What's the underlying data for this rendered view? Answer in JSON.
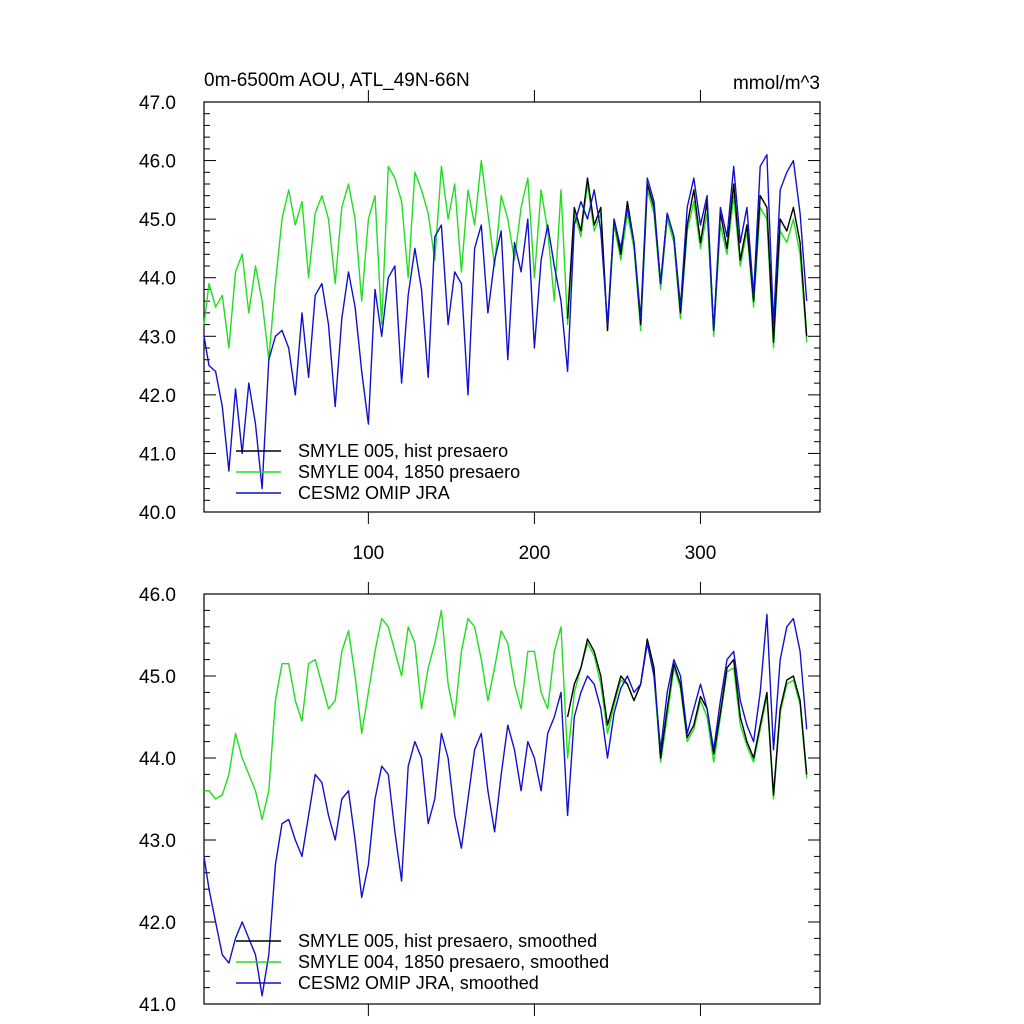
{
  "colors": {
    "smyle005": "#000000",
    "smyle004": "#22dd22",
    "omip": "#1111cc"
  },
  "chart_data": [
    {
      "type": "line",
      "title": "0m-6500m AOU, ATL_49N-66N",
      "units": "mmol/m^3",
      "xlabel": "",
      "ylabel": "",
      "xlim": [
        1,
        372
      ],
      "ylim": [
        40.0,
        47.0
      ],
      "yticks": [
        "40.0",
        "41.0",
        "42.0",
        "43.0",
        "44.0",
        "45.0",
        "46.0",
        "47.0"
      ],
      "xticks": [
        "100",
        "200",
        "300"
      ],
      "legend_position": "bottom-left",
      "series": [
        {
          "name": "SMYLE 005, hist presaero",
          "start_x": 220,
          "x": [
            220,
            224,
            228,
            232,
            236,
            240,
            244,
            248,
            252,
            256,
            260,
            264,
            268,
            272,
            276,
            280,
            284,
            288,
            292,
            296,
            300,
            304,
            308,
            312,
            316,
            320,
            324,
            328,
            332,
            336,
            340,
            344,
            348,
            352,
            356,
            360,
            364
          ],
          "values": [
            43.3,
            45.2,
            44.8,
            45.7,
            44.9,
            45.2,
            43.1,
            45.0,
            44.4,
            45.3,
            44.6,
            43.2,
            45.6,
            45.2,
            43.9,
            45.1,
            44.7,
            43.4,
            44.9,
            45.5,
            44.6,
            45.3,
            43.1,
            45.1,
            44.5,
            45.6,
            44.3,
            44.9,
            43.6,
            45.4,
            45.2,
            42.9,
            45.0,
            44.8,
            45.2,
            44.6,
            43.0
          ]
        },
        {
          "name": "SMYLE 004, 1850 presaero",
          "start_x": 1,
          "x": [
            1,
            4,
            8,
            12,
            16,
            20,
            24,
            28,
            32,
            36,
            40,
            44,
            48,
            52,
            56,
            60,
            64,
            68,
            72,
            76,
            80,
            84,
            88,
            92,
            96,
            100,
            104,
            108,
            112,
            116,
            120,
            124,
            128,
            132,
            136,
            140,
            144,
            148,
            152,
            156,
            160,
            164,
            168,
            172,
            176,
            180,
            184,
            188,
            192,
            196,
            200,
            204,
            208,
            212,
            216,
            220,
            224,
            228,
            232,
            236,
            240,
            244,
            248,
            252,
            256,
            260,
            264,
            268,
            272,
            276,
            280,
            284,
            288,
            292,
            296,
            300,
            304,
            308,
            312,
            316,
            320,
            324,
            328,
            332,
            336,
            340,
            344,
            348,
            352,
            356,
            360,
            364
          ],
          "values": [
            43.2,
            43.9,
            43.5,
            43.7,
            42.8,
            44.1,
            44.4,
            43.4,
            44.2,
            43.6,
            42.6,
            43.9,
            45.0,
            45.5,
            44.9,
            45.3,
            44.0,
            45.1,
            45.4,
            45.0,
            43.9,
            45.2,
            45.6,
            45.0,
            43.6,
            45.0,
            45.4,
            43.2,
            45.9,
            45.7,
            45.3,
            44.0,
            45.8,
            45.5,
            45.1,
            44.3,
            45.9,
            45.0,
            45.6,
            44.1,
            45.5,
            44.9,
            46.0,
            45.1,
            44.2,
            45.4,
            45.0,
            44.3,
            45.2,
            45.7,
            44.0,
            45.5,
            44.8,
            43.6,
            45.5,
            43.2,
            45.1,
            44.7,
            45.6,
            44.8,
            45.1,
            43.1,
            44.9,
            44.3,
            45.1,
            44.5,
            43.1,
            45.5,
            45.1,
            43.8,
            45.0,
            44.6,
            43.3,
            44.8,
            45.3,
            44.5,
            45.1,
            43.0,
            44.9,
            44.4,
            45.4,
            44.2,
            44.8,
            43.5,
            45.2,
            45.0,
            42.8,
            44.8,
            44.6,
            45.0,
            44.4,
            42.9
          ]
        },
        {
          "name": "CESM2 OMIP JRA",
          "start_x": 1,
          "x": [
            1,
            4,
            8,
            12,
            16,
            20,
            24,
            28,
            32,
            36,
            40,
            44,
            48,
            52,
            56,
            60,
            64,
            68,
            72,
            76,
            80,
            84,
            88,
            92,
            96,
            100,
            104,
            108,
            112,
            116,
            120,
            124,
            128,
            132,
            136,
            140,
            144,
            148,
            152,
            156,
            160,
            164,
            168,
            172,
            176,
            180,
            184,
            188,
            192,
            196,
            200,
            204,
            208,
            212,
            216,
            220,
            224,
            228,
            232,
            236,
            240,
            244,
            248,
            252,
            256,
            260,
            264,
            268,
            272,
            276,
            280,
            284,
            288,
            292,
            296,
            300,
            304,
            308,
            312,
            316,
            320,
            324,
            328,
            332,
            336,
            340,
            344,
            348,
            352,
            356,
            360,
            364
          ],
          "values": [
            43.0,
            42.5,
            42.4,
            41.8,
            40.7,
            42.1,
            41.0,
            42.2,
            41.5,
            40.4,
            42.6,
            43.0,
            43.1,
            42.8,
            42.0,
            43.4,
            42.3,
            43.7,
            43.9,
            43.2,
            41.8,
            43.3,
            44.1,
            43.5,
            42.4,
            41.5,
            43.8,
            43.0,
            44.0,
            44.2,
            42.2,
            43.7,
            44.5,
            43.8,
            42.3,
            44.7,
            44.9,
            43.2,
            44.1,
            43.9,
            42.0,
            44.5,
            44.9,
            43.4,
            44.3,
            44.8,
            42.6,
            44.6,
            44.1,
            45.0,
            42.8,
            44.3,
            44.9,
            44.2,
            43.6,
            42.4,
            44.9,
            45.3,
            45.0,
            45.5,
            44.8,
            43.2,
            45.0,
            44.5,
            45.2,
            44.6,
            43.3,
            45.7,
            45.3,
            43.9,
            45.1,
            44.7,
            43.5,
            45.2,
            45.7,
            44.9,
            45.4,
            43.1,
            45.2,
            44.7,
            45.9,
            44.6,
            45.2,
            43.7,
            45.9,
            46.1,
            43.2,
            45.5,
            45.8,
            46.0,
            45.1,
            43.6
          ]
        }
      ]
    },
    {
      "type": "line",
      "title": "",
      "xlabel": "",
      "ylabel": "",
      "xlim": [
        1,
        372
      ],
      "ylim": [
        41.0,
        46.0
      ],
      "yticks": [
        "41.0",
        "42.0",
        "43.0",
        "44.0",
        "45.0",
        "46.0"
      ],
      "xticks": [],
      "legend_position": "bottom-left",
      "series": [
        {
          "name": "SMYLE 005, hist presaero, smoothed",
          "start_x": 220,
          "x": [
            220,
            224,
            228,
            232,
            236,
            240,
            244,
            248,
            252,
            256,
            260,
            264,
            268,
            272,
            276,
            280,
            284,
            288,
            292,
            296,
            300,
            304,
            308,
            312,
            316,
            320,
            324,
            328,
            332,
            336,
            340,
            344,
            348,
            352,
            356,
            360,
            364
          ],
          "values": [
            44.5,
            44.9,
            45.1,
            45.45,
            45.3,
            45.0,
            44.4,
            44.7,
            45.0,
            44.9,
            44.7,
            44.9,
            45.45,
            45.1,
            44.0,
            44.6,
            45.15,
            44.9,
            44.25,
            44.4,
            44.75,
            44.6,
            44.05,
            44.55,
            45.1,
            45.2,
            44.5,
            44.2,
            44.0,
            44.4,
            44.8,
            43.55,
            44.6,
            44.95,
            45.0,
            44.7,
            43.8
          ]
        },
        {
          "name": "SMYLE 004, 1850 presaero, smoothed",
          "start_x": 1,
          "x": [
            1,
            4,
            8,
            12,
            16,
            20,
            24,
            28,
            32,
            36,
            40,
            44,
            48,
            52,
            56,
            60,
            64,
            68,
            72,
            76,
            80,
            84,
            88,
            92,
            96,
            100,
            104,
            108,
            112,
            116,
            120,
            124,
            128,
            132,
            136,
            140,
            144,
            148,
            152,
            156,
            160,
            164,
            168,
            172,
            176,
            180,
            184,
            188,
            192,
            196,
            200,
            204,
            208,
            212,
            216,
            220,
            224,
            228,
            232,
            236,
            240,
            244,
            248,
            252,
            256,
            260,
            264,
            268,
            272,
            276,
            280,
            284,
            288,
            292,
            296,
            300,
            304,
            308,
            312,
            316,
            320,
            324,
            328,
            332,
            336,
            340,
            344,
            348,
            352,
            356,
            360,
            364
          ],
          "values": [
            43.6,
            43.6,
            43.5,
            43.55,
            43.8,
            44.3,
            44.0,
            43.8,
            43.6,
            43.25,
            43.6,
            44.7,
            45.15,
            45.15,
            44.7,
            44.45,
            45.15,
            45.2,
            44.9,
            44.6,
            44.7,
            45.3,
            45.55,
            45.0,
            44.3,
            44.8,
            45.3,
            45.7,
            45.6,
            45.3,
            45.0,
            45.6,
            45.4,
            44.6,
            45.1,
            45.4,
            45.8,
            44.9,
            44.5,
            45.3,
            45.7,
            45.6,
            45.2,
            44.7,
            45.1,
            45.55,
            45.4,
            44.9,
            44.6,
            45.3,
            45.3,
            44.8,
            44.6,
            45.3,
            45.6,
            44.0,
            44.8,
            45.1,
            45.4,
            45.25,
            44.9,
            44.3,
            44.65,
            44.95,
            44.9,
            44.7,
            44.9,
            45.4,
            45.0,
            43.95,
            44.5,
            45.1,
            44.85,
            44.2,
            44.35,
            44.7,
            44.5,
            43.95,
            44.5,
            45.05,
            45.1,
            44.4,
            44.15,
            43.95,
            44.35,
            44.75,
            43.5,
            44.55,
            44.9,
            44.95,
            44.65,
            43.75
          ]
        },
        {
          "name": "CESM2 OMIP JRA, smoothed",
          "start_x": 1,
          "x": [
            1,
            4,
            8,
            12,
            16,
            20,
            24,
            28,
            32,
            36,
            40,
            44,
            48,
            52,
            56,
            60,
            64,
            68,
            72,
            76,
            80,
            84,
            88,
            92,
            96,
            100,
            104,
            108,
            112,
            116,
            120,
            124,
            128,
            132,
            136,
            140,
            144,
            148,
            152,
            156,
            160,
            164,
            168,
            172,
            176,
            180,
            184,
            188,
            192,
            196,
            200,
            204,
            208,
            212,
            216,
            220,
            224,
            228,
            232,
            236,
            240,
            244,
            248,
            252,
            256,
            260,
            264,
            268,
            272,
            276,
            280,
            284,
            288,
            292,
            296,
            300,
            304,
            308,
            312,
            316,
            320,
            324,
            328,
            332,
            336,
            340,
            344,
            348,
            352,
            356,
            360,
            364
          ],
          "values": [
            42.8,
            42.4,
            42.0,
            41.6,
            41.5,
            41.8,
            42.0,
            41.8,
            41.6,
            41.1,
            41.6,
            42.7,
            43.2,
            43.25,
            43.0,
            42.8,
            43.3,
            43.8,
            43.7,
            43.3,
            43.0,
            43.5,
            43.6,
            43.0,
            42.3,
            42.7,
            43.5,
            43.9,
            43.8,
            43.1,
            42.5,
            43.9,
            44.2,
            44.0,
            43.2,
            43.5,
            44.3,
            44.0,
            43.3,
            42.9,
            43.5,
            44.1,
            44.3,
            43.6,
            43.1,
            43.8,
            44.4,
            44.1,
            43.6,
            44.2,
            44.0,
            43.6,
            44.3,
            44.5,
            44.8,
            43.3,
            44.5,
            44.8,
            45.0,
            44.9,
            44.6,
            44.0,
            44.55,
            44.85,
            45.0,
            44.8,
            44.9,
            45.4,
            45.0,
            44.1,
            44.8,
            45.2,
            45.0,
            44.3,
            44.6,
            44.9,
            44.6,
            44.1,
            44.7,
            45.2,
            45.3,
            44.7,
            44.4,
            44.2,
            44.8,
            45.75,
            44.1,
            45.2,
            45.6,
            45.7,
            45.3,
            44.35
          ]
        }
      ]
    }
  ]
}
